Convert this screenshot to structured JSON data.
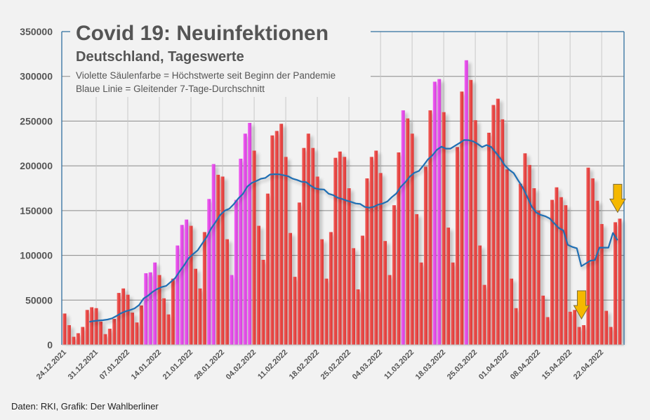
{
  "chart_data": {
    "type": "bar",
    "title": "Covid 19: Neuinfektionen",
    "subtitle": "Deutschland, Tageswerte",
    "notes": [
      "Violette Säulenfarbe = Höchstwerte seit Beginn der Pandemie",
      "Blaue Linie = Gleitender 7-Tage-Durchschnitt"
    ],
    "source": "Daten: RKI, Grafik: Der Wahlberliner",
    "first_date": "24.12.2021",
    "last_date": "26.04.2022",
    "xtick_labels": [
      "24.12.2021",
      "31.12.2021",
      "07.01.2022",
      "14.01.2022",
      "21.01.2022",
      "28.01.2022",
      "04.02.2022",
      "11.02.2022",
      "18.02.2022",
      "25.02.2022",
      "04.03.2022",
      "11.03.2022",
      "18.03.2022",
      "25.03.2022",
      "01.04.2022",
      "08.04.2022",
      "15.04.2022",
      "22.04.2022"
    ],
    "yticks": [
      0,
      50000,
      100000,
      150000,
      200000,
      250000,
      300000,
      350000
    ],
    "ylim": [
      0,
      350000
    ],
    "grid": true,
    "values": [
      35000,
      22000,
      9000,
      13000,
      20000,
      39000,
      42000,
      41000,
      26000,
      12000,
      18000,
      29000,
      58000,
      63000,
      56000,
      36000,
      25000,
      44000,
      80000,
      81000,
      92000,
      78000,
      52000,
      34000,
      74000,
      111000,
      134000,
      140000,
      133000,
      85000,
      63000,
      126000,
      163000,
      202000,
      190000,
      188000,
      118000,
      78000,
      162000,
      208000,
      236000,
      248000,
      217000,
      133000,
      95000,
      169000,
      234000,
      239000,
      247000,
      210000,
      125000,
      76000,
      159000,
      220000,
      236000,
      220000,
      188000,
      118000,
      74000,
      126000,
      209000,
      216000,
      210000,
      175000,
      108000,
      62000,
      122000,
      186000,
      210000,
      217000,
      192000,
      116000,
      78000,
      156000,
      215000,
      262000,
      253000,
      236000,
      146000,
      92000,
      199000,
      262000,
      294000,
      297000,
      260000,
      131000,
      92000,
      221000,
      283000,
      318000,
      296000,
      251000,
      111000,
      67000,
      237000,
      268000,
      275000,
      252000,
      196000,
      74000,
      41000,
      180000,
      214000,
      201000,
      175000,
      150000,
      55000,
      31000,
      162000,
      176000,
      165000,
      156000,
      37000,
      39000,
      20000,
      22000,
      198000,
      186000,
      161000,
      135000,
      38000,
      20000,
      137000,
      141000
    ],
    "record_high_indices": [
      18,
      19,
      20,
      25,
      26,
      27,
      32,
      33,
      37,
      38,
      39,
      40,
      41,
      75,
      82,
      83,
      89
    ],
    "moving_average": {
      "window_days": 7,
      "starts_at": "30.12.2021"
    },
    "arrows_at_dates": [
      "18.04.2022",
      "26.04.2022"
    ],
    "colors": {
      "bar": "#e84543",
      "record_bar": "#e44ce8",
      "line": "#1f6fb4",
      "arrow": "#f5b800",
      "frame": "#2f6f9f"
    }
  }
}
